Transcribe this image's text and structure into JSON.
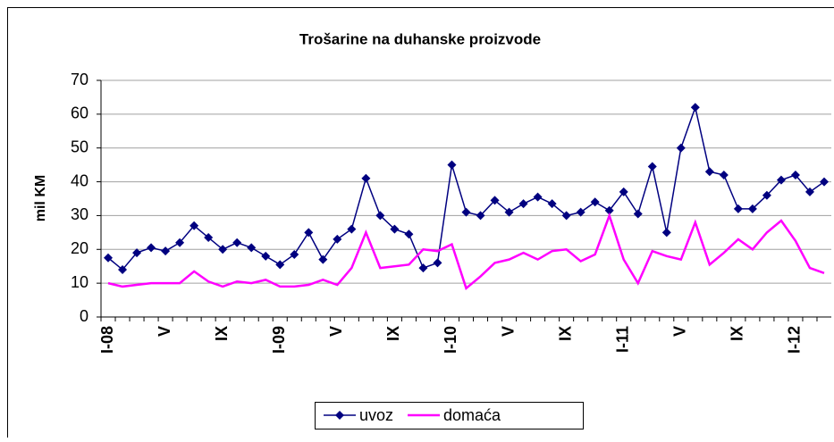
{
  "chart_data": {
    "type": "line",
    "title": "Trošarine na duhanske proizvode",
    "ylabel": "mil KM",
    "categories": [
      "I-08",
      null,
      null,
      null,
      "V",
      null,
      null,
      null,
      "IX",
      null,
      null,
      null,
      "I-09",
      null,
      null,
      null,
      "V",
      null,
      null,
      null,
      "IX",
      null,
      null,
      null,
      "I-10",
      null,
      null,
      null,
      "V",
      null,
      null,
      null,
      "IX",
      null,
      null,
      null,
      "I-11",
      null,
      null,
      null,
      "V",
      null,
      null,
      null,
      "IX",
      null,
      null,
      null,
      "I-12",
      null,
      null
    ],
    "series": [
      {
        "name": "uvoz",
        "color": "#000080",
        "marker": "diamond",
        "values": [
          17.5,
          14,
          19,
          20.5,
          19.5,
          22,
          27,
          23.5,
          20,
          22,
          20.5,
          18,
          15.5,
          18.5,
          25,
          17,
          23,
          26,
          41,
          30,
          26,
          24.5,
          14.5,
          16,
          45,
          31,
          30,
          34.5,
          31,
          33.5,
          35.5,
          33.5,
          30,
          31,
          34,
          31.5,
          37,
          30.5,
          44.5,
          25,
          50,
          62,
          43,
          42,
          32,
          32,
          36,
          40.5,
          42,
          37,
          40
        ]
      },
      {
        "name": "domaća",
        "color": "#ff00ff",
        "marker": "none",
        "values": [
          10,
          9,
          9.5,
          10,
          10,
          10,
          13.5,
          10.5,
          9,
          10.5,
          10,
          11,
          9,
          9,
          9.5,
          11,
          9.5,
          14.5,
          25,
          14.5,
          15,
          15.5,
          20,
          19.5,
          21.5,
          8.5,
          12,
          16,
          17,
          19,
          17,
          19.5,
          20,
          16.5,
          18.5,
          30,
          17,
          10,
          19.5,
          18,
          17,
          28,
          15.5,
          19,
          23,
          20,
          25,
          28.5,
          22.5,
          14.5,
          13
        ]
      }
    ],
    "ylim": [
      0,
      70
    ],
    "yticks": [
      0,
      10,
      20,
      30,
      40,
      50,
      60,
      70
    ],
    "grid": true,
    "legend": "bottom"
  }
}
